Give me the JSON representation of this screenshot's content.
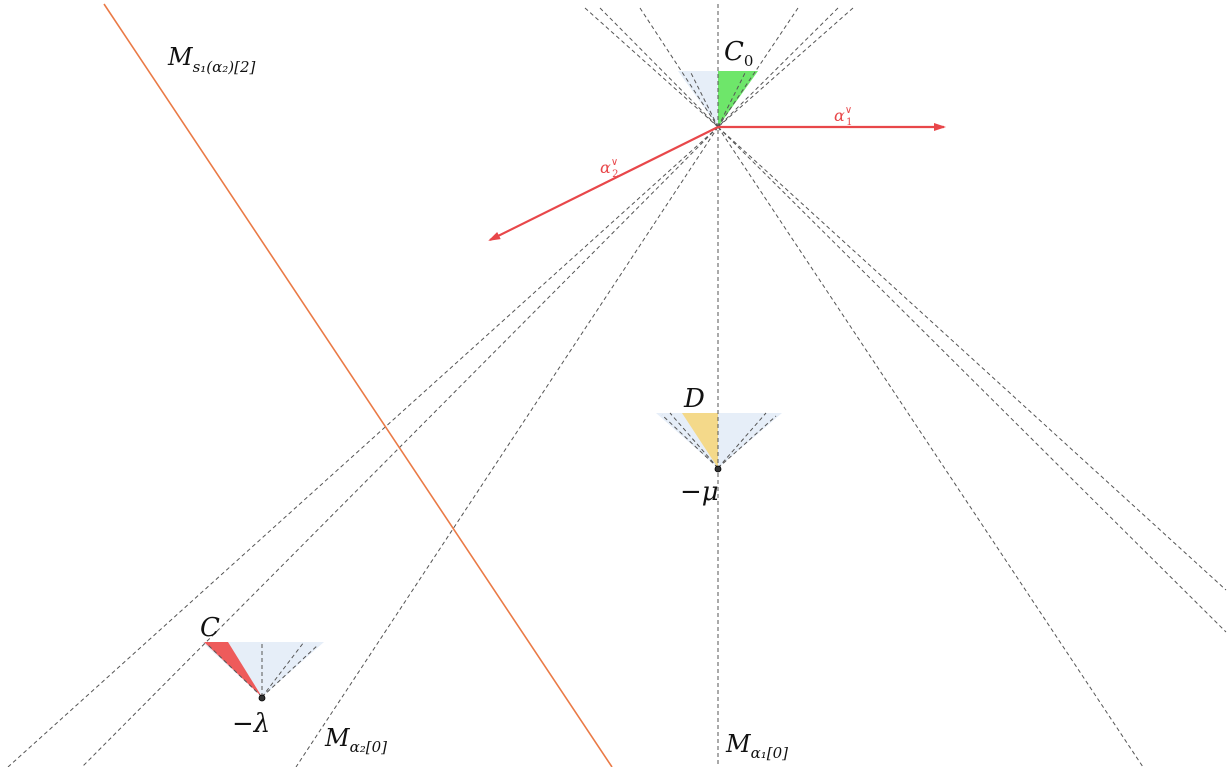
{
  "labels": {
    "c0": "C",
    "c0_sub": "0",
    "d": "D",
    "c": "C",
    "minus_mu": "−μ",
    "minus_lambda": "−λ",
    "alpha1": "α",
    "alpha1_sup": "∨",
    "alpha1_sub": "1",
    "alpha2": "α",
    "alpha2_sup": "∨",
    "alpha2_sub": "2",
    "m_alpha1": "M",
    "m_alpha1_sub": "α₁[0]",
    "m_alpha2": "M",
    "m_alpha2_sub": "α₂[0]",
    "m_s1": "M",
    "m_s1_sub": "s₁(α₂)[2]"
  },
  "colors": {
    "chamber_c0": "#6ee66a",
    "chamber_d": "#f4d98a",
    "chamber_c": "#ee5b5b",
    "fan": "#dde8f5",
    "coroot_arrow": "#e8474a",
    "mirror_s1": "#ea7a46",
    "dashed": "#555555"
  }
}
